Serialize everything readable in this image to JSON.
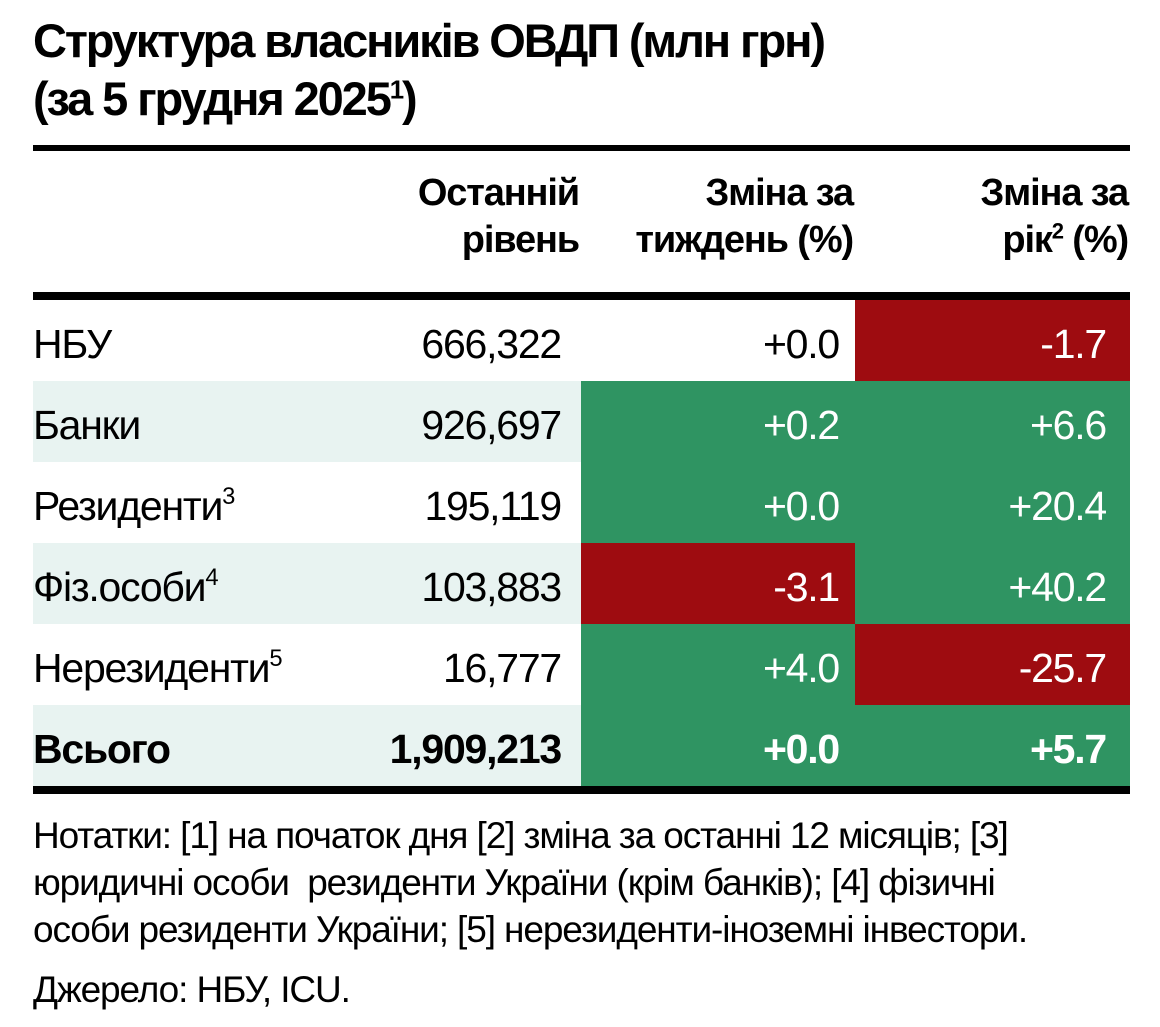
{
  "title": {
    "line1": "Структура власників ОВДП (млн грн)",
    "line2_pre": "(за 5 грудня 2025",
    "line2_sup": "1",
    "line2_post": ")"
  },
  "table": {
    "headers": {
      "level": {
        "line1": "Останній",
        "line2": "рівень"
      },
      "week": {
        "line1": "Зміна за",
        "line2": "тиждень (%)"
      },
      "year": {
        "line1": "Зміна за",
        "line2_pre": "рік",
        "line2_sup": "2",
        "line2_post": " (%)"
      }
    },
    "rows": [
      {
        "label": "НБУ",
        "sup": "",
        "level": "666,322",
        "week": "+0.0",
        "year": "-1.7",
        "week_color": "none",
        "year_color": "red",
        "bold": false,
        "shade": false
      },
      {
        "label": "Банки",
        "sup": "",
        "level": "926,697",
        "week": "+0.2",
        "year": "+6.6",
        "week_color": "green",
        "year_color": "green",
        "bold": false,
        "shade": true
      },
      {
        "label": "Резиденти",
        "sup": "3",
        "level": "195,119",
        "week": "+0.0",
        "year": "+20.4",
        "week_color": "green",
        "year_color": "green",
        "bold": false,
        "shade": false
      },
      {
        "label": "Фіз.особи",
        "sup": "4",
        "level": "103,883",
        "week": "-3.1",
        "year": "+40.2",
        "week_color": "red",
        "year_color": "green",
        "bold": false,
        "shade": true
      },
      {
        "label": "Нерезиденти",
        "sup": "5",
        "level": "16,777",
        "week": "+4.0",
        "year": "-25.7",
        "week_color": "green",
        "year_color": "red",
        "bold": false,
        "shade": false
      },
      {
        "label": "Всього",
        "sup": "",
        "level": "1,909,213",
        "week": "+0.0",
        "year": "+5.7",
        "week_color": "green",
        "year_color": "green",
        "bold": true,
        "shade": true
      }
    ]
  },
  "notes": "Нотатки: [1] на початок дня [2] зміна за останні 12 місяців; [3]\nюридичні особи  резиденти України (крім банків); [4] фізичні\nособи резиденти України; [5] нерезиденти-іноземні інвестори.",
  "source": "Джерело: НБУ, ICU.",
  "colors": {
    "positive_green": "#2F9462",
    "negative_red": "#9E0C10",
    "row_shade": "#E8F3F1",
    "rule_black": "#000000"
  },
  "chart_data": {
    "type": "table",
    "title": "Структура власників ОВДП (млн грн) (за 5 грудня 2025)",
    "columns": [
      "Останній рівень",
      "Зміна за тиждень (%)",
      "Зміна за рік (%)"
    ],
    "rows": [
      {
        "category": "НБУ",
        "level_mln_uah": 666322,
        "week_change_pct": 0.0,
        "year_change_pct": -1.7
      },
      {
        "category": "Банки",
        "level_mln_uah": 926697,
        "week_change_pct": 0.2,
        "year_change_pct": 6.6
      },
      {
        "category": "Резиденти",
        "level_mln_uah": 195119,
        "week_change_pct": 0.0,
        "year_change_pct": 20.4
      },
      {
        "category": "Фіз.особи",
        "level_mln_uah": 103883,
        "week_change_pct": -3.1,
        "year_change_pct": 40.2
      },
      {
        "category": "Нерезиденти",
        "level_mln_uah": 16777,
        "week_change_pct": 4.0,
        "year_change_pct": -25.7
      },
      {
        "category": "Всього",
        "level_mln_uah": 1909213,
        "week_change_pct": 0.0,
        "year_change_pct": 5.7
      }
    ],
    "legend_note": "green cell = positive change, dark red cell = negative change"
  }
}
